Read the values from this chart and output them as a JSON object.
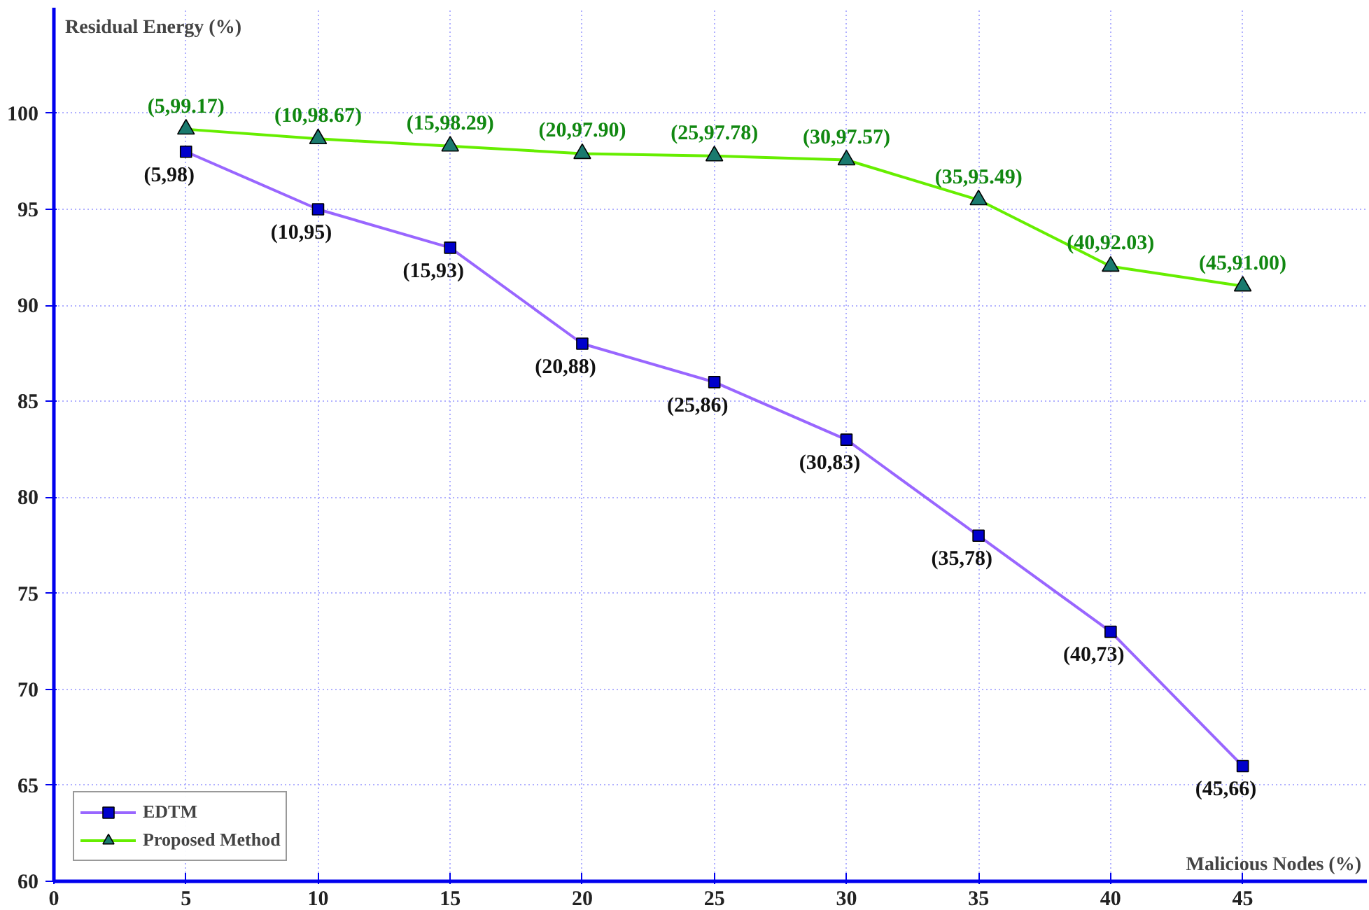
{
  "chart_data": {
    "type": "line",
    "xlabel": "Malicious Nodes (%)",
    "ylabel": "Residual Energy (%)",
    "xlim": [
      0,
      49.7
    ],
    "ylim": [
      60,
      105.5
    ],
    "xticks": [
      0,
      5,
      10,
      15,
      20,
      25,
      30,
      35,
      40,
      45
    ],
    "yticks": [
      60,
      65,
      70,
      75,
      80,
      85,
      90,
      95,
      100
    ],
    "x": [
      5,
      10,
      15,
      20,
      25,
      30,
      35,
      40,
      45
    ],
    "series": [
      {
        "name": "EDTM",
        "color": "#9966ff",
        "marker": "square",
        "values": [
          98,
          95,
          93,
          88,
          86,
          83,
          78,
          73,
          66
        ]
      },
      {
        "name": "Proposed Method",
        "color": "#66ee00",
        "marker": "triangle",
        "values": [
          99.17,
          98.67,
          98.29,
          97.9,
          97.78,
          97.57,
          95.49,
          92.03,
          91.0
        ]
      }
    ],
    "annotations": [
      {
        "text": "(5,98)",
        "x": 5,
        "y": 98
      },
      {
        "text": "(10,95)",
        "x": 10,
        "y": 95
      },
      {
        "text": "(15,93)",
        "x": 15,
        "y": 93
      },
      {
        "text": "(20,88)",
        "x": 20,
        "y": 88
      },
      {
        "text": "(25,86)",
        "x": 25,
        "y": 86
      },
      {
        "text": "(30,83)",
        "x": 30,
        "y": 83
      },
      {
        "text": "(35,78)",
        "x": 35,
        "y": 78
      },
      {
        "text": "(40,73)",
        "x": 40,
        "y": 73
      },
      {
        "text": "(45,66)",
        "x": 45,
        "y": 66
      },
      {
        "text": "(5,99.17)",
        "x": 5,
        "y": 99.17
      },
      {
        "text": "(10,98.67)",
        "x": 10,
        "y": 98.67
      },
      {
        "text": "(15,98.29)",
        "x": 15,
        "y": 98.29
      },
      {
        "text": "(20,97.90)",
        "x": 20,
        "y": 97.9
      },
      {
        "text": "(25,97.78)",
        "x": 25,
        "y": 97.78
      },
      {
        "text": "(30,97.57)",
        "x": 30,
        "y": 97.57
      },
      {
        "text": "(35,95.49)",
        "x": 35,
        "y": 95.49
      },
      {
        "text": "(40,92.03)",
        "x": 40,
        "y": 92.03
      },
      {
        "text": "(45,91.00)",
        "x": 45,
        "y": 91.0
      }
    ],
    "grid": true,
    "legend": "bottom left",
    "line_style": "solid"
  }
}
